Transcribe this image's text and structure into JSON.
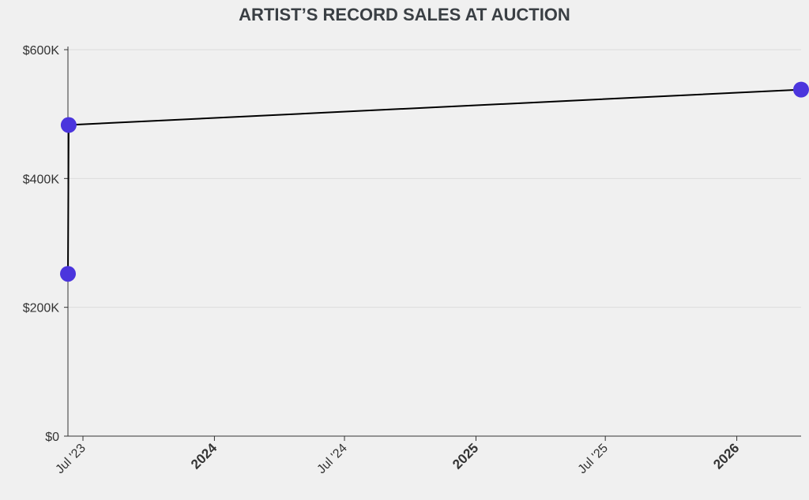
{
  "chart_data": {
    "type": "line",
    "title": "ARTIST’S RECORD SALES AT AUCTION",
    "xlabel": "",
    "ylabel": "",
    "x_range": [
      "2023-06-10",
      "2026-04-01"
    ],
    "ylim": [
      0,
      600000
    ],
    "grid": true,
    "y_ticks": [
      {
        "value": 0,
        "label": "$0"
      },
      {
        "value": 200000,
        "label": "$200K"
      },
      {
        "value": 400000,
        "label": "$400K"
      },
      {
        "value": 600000,
        "label": "$600K"
      }
    ],
    "x_ticks": [
      {
        "date": "2023-07-01",
        "label": "Jul '23",
        "major": false
      },
      {
        "date": "2024-01-01",
        "label": "2024",
        "major": true
      },
      {
        "date": "2024-07-01",
        "label": "Jul '24",
        "major": false
      },
      {
        "date": "2025-01-01",
        "label": "2025",
        "major": true
      },
      {
        "date": "2025-07-01",
        "label": "Jul '25",
        "major": false
      },
      {
        "date": "2026-01-01",
        "label": "2026",
        "major": true
      }
    ],
    "series": [
      {
        "points": [
          {
            "x": "2023-06-10",
            "y": 252000
          },
          {
            "x": "2023-06-11",
            "y": 483000
          },
          {
            "x": "2026-04-01",
            "y": 538000
          }
        ]
      }
    ],
    "colors": {
      "line": "#000000",
      "marker": "#4b35dd",
      "grid": "#dcdcdc",
      "axis": "#333333",
      "title": "#3a3f44"
    }
  }
}
